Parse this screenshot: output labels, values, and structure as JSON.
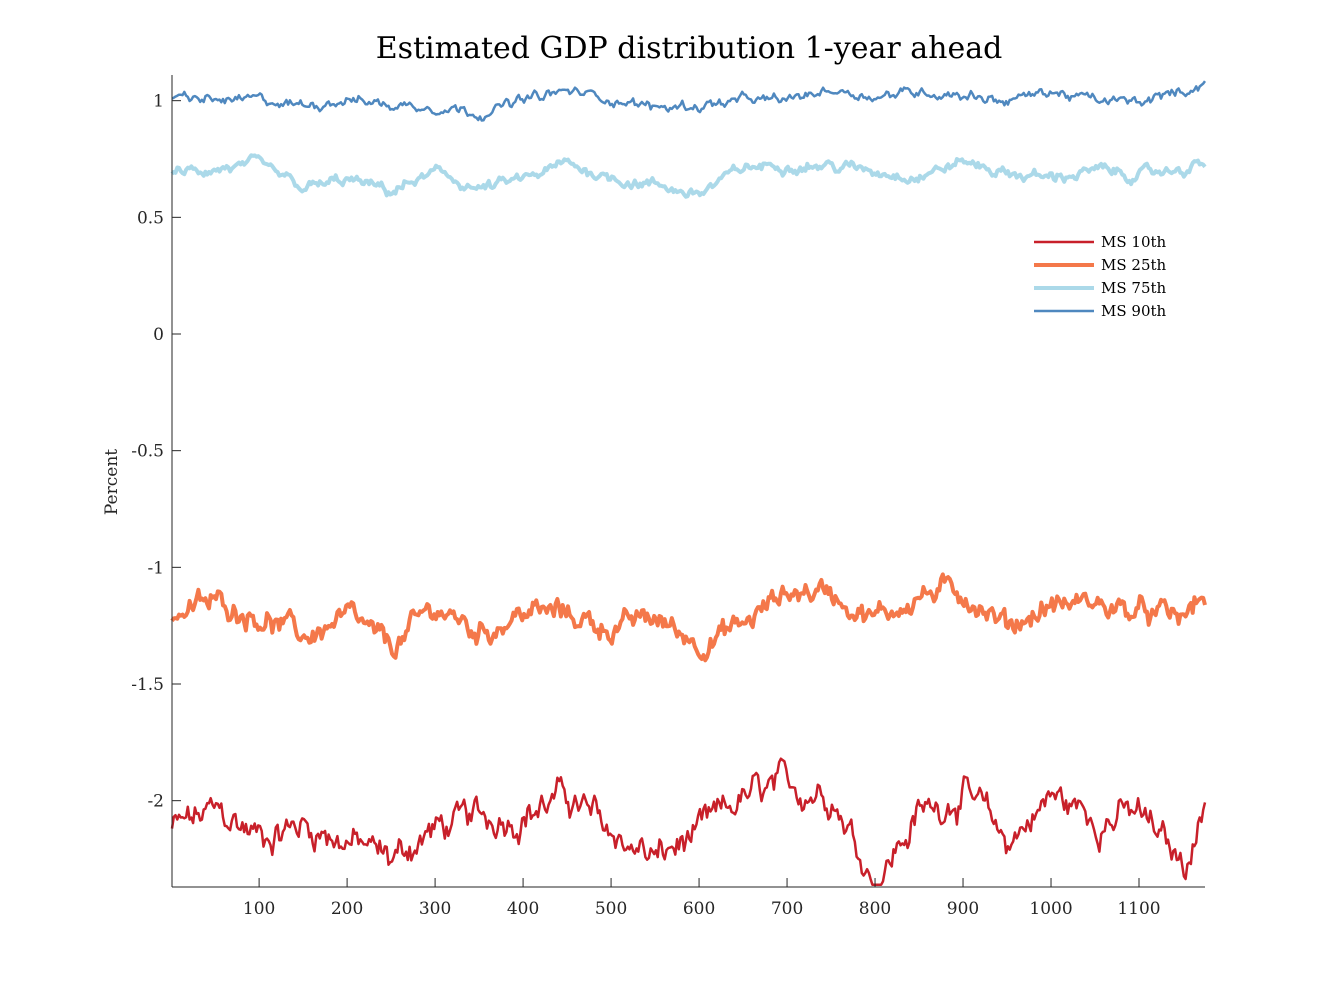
{
  "chart_data": {
    "type": "line",
    "title": "Estimated GDP distribution 1-year ahead",
    "xlabel": "",
    "ylabel": "Percent",
    "xlim": [
      1,
      1175
    ],
    "ylim": [
      -2.37,
      1.11
    ],
    "xticks": [
      100,
      200,
      300,
      400,
      500,
      600,
      700,
      800,
      900,
      1000,
      1100
    ],
    "yticks": [
      1,
      0.5,
      0,
      -0.5,
      -1,
      -1.5,
      -2
    ],
    "ytick_labels": [
      "1",
      "0.5",
      "0",
      "-0.5",
      "-1",
      "-1.5",
      "-2"
    ],
    "grid": false,
    "legend_position": "upper-right",
    "x": [
      1,
      50,
      100,
      150,
      200,
      250,
      300,
      350,
      400,
      450,
      500,
      550,
      600,
      650,
      700,
      750,
      800,
      850,
      900,
      950,
      1000,
      1050,
      1100,
      1150,
      1175
    ],
    "series": [
      {
        "name": "MS 10th",
        "color": "#c8202a",
        "width": 2.5,
        "values": [
          -2.12,
          -2.05,
          -2.15,
          -2.1,
          -2.17,
          -2.25,
          -2.12,
          -2.08,
          -2.05,
          -1.98,
          -2.14,
          -2.25,
          -2.15,
          -1.99,
          -1.95,
          -1.95,
          -2.35,
          -2.06,
          -1.96,
          -2.18,
          -1.98,
          -2.07,
          -2.06,
          -2.28,
          -2.02
        ]
      },
      {
        "name": "MS 25th",
        "color": "#f4784a",
        "width": 4,
        "values": [
          -1.2,
          -1.15,
          -1.2,
          -1.3,
          -1.22,
          -1.35,
          -1.17,
          -1.28,
          -1.19,
          -1.2,
          -1.26,
          -1.22,
          -1.32,
          -1.25,
          -1.1,
          -1.1,
          -1.22,
          -1.12,
          -1.1,
          -1.25,
          -1.16,
          -1.15,
          -1.2,
          -1.22,
          -1.12
        ]
      },
      {
        "name": "MS 75th",
        "color": "#abd9e9",
        "width": 4,
        "values": [
          0.68,
          0.71,
          0.72,
          0.62,
          0.66,
          0.61,
          0.69,
          0.62,
          0.66,
          0.73,
          0.67,
          0.64,
          0.6,
          0.71,
          0.73,
          0.72,
          0.7,
          0.68,
          0.74,
          0.69,
          0.67,
          0.7,
          0.68,
          0.71,
          0.73
        ]
      },
      {
        "name": "MS 90th",
        "color": "#4f88bf",
        "width": 2.5,
        "values": [
          1.01,
          1.0,
          1.0,
          0.98,
          1.01,
          0.98,
          0.98,
          0.95,
          1.0,
          1.04,
          1.01,
          0.97,
          0.98,
          1.0,
          1.0,
          1.05,
          1.02,
          1.04,
          1.03,
          1.0,
          1.04,
          1.0,
          0.99,
          1.04,
          1.08
        ]
      }
    ]
  }
}
